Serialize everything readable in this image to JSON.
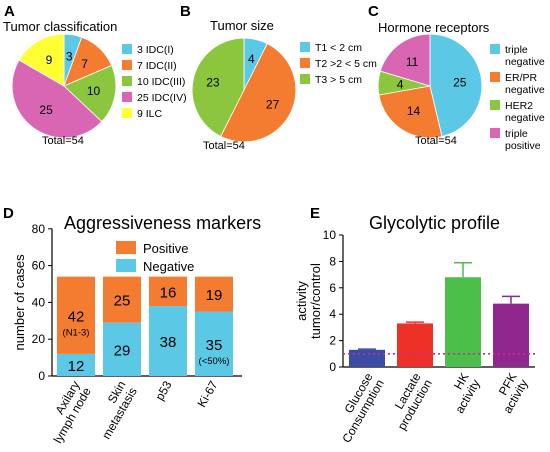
{
  "figure": {
    "colors": {
      "cyan": "#5bc9e6",
      "orange": "#f47c30",
      "green": "#8cc63f",
      "magenta": "#d966b3",
      "yellow": "#ffff33",
      "e_blue": "#3c4ba6",
      "e_red": "#ee3128",
      "e_green": "#4bbf4a",
      "e_purple": "#90278e",
      "dotted": "#b3359a"
    }
  },
  "chart_data": [
    {
      "panel": "A",
      "type": "pie",
      "title": "Tumor classification",
      "slices": [
        {
          "label": "3 IDC(I)",
          "value": 3,
          "color": "#5bc9e6"
        },
        {
          "label": "7 IDC(II)",
          "value": 7,
          "color": "#f47c30"
        },
        {
          "label": "10 IDC(III)",
          "value": 10,
          "color": "#8cc63f"
        },
        {
          "label": "25 IDC(IV)",
          "value": 25,
          "color": "#d966b3"
        },
        {
          "label": "9 ILC",
          "value": 9,
          "color": "#ffff33"
        }
      ],
      "total_label": "Total=54"
    },
    {
      "panel": "B",
      "type": "pie",
      "title": "Tumor size",
      "slices": [
        {
          "label": "T1 < 2 cm",
          "value": 4,
          "color": "#5bc9e6"
        },
        {
          "label": "T2 >2 < 5 cm",
          "value": 27,
          "color": "#f47c30"
        },
        {
          "label": "T3 > 5 cm",
          "value": 23,
          "color": "#8cc63f"
        }
      ],
      "total_label": "Total=54"
    },
    {
      "panel": "C",
      "type": "pie",
      "title": "Hormone receptors",
      "slices": [
        {
          "label": "triple negative",
          "value": 25,
          "color": "#5bc9e6"
        },
        {
          "label": "ER/PR negative",
          "value": 14,
          "color": "#f47c30"
        },
        {
          "label": "HER2 negative",
          "value": 4,
          "color": "#8cc63f"
        },
        {
          "label": "triple positive",
          "value": 11,
          "color": "#d966b3"
        }
      ],
      "total_label": "Total=54"
    },
    {
      "panel": "D",
      "type": "bar",
      "title": "Aggressiveness markers",
      "ylabel": "number of cases",
      "ylim": [
        0,
        80
      ],
      "yticks": [
        0,
        20,
        40,
        60,
        80
      ],
      "categories": [
        "Axilary lymph node",
        "Skin metastasis",
        "p53",
        "Ki-67"
      ],
      "series": [
        {
          "name": "Negative",
          "values": [
            12,
            29,
            38,
            35
          ],
          "color": "#5bc9e6"
        },
        {
          "name": "Positive",
          "values": [
            42,
            25,
            16,
            19
          ],
          "color": "#f47c30"
        }
      ],
      "annotations": [
        {
          "category": "Axilary lymph node",
          "series": "Positive",
          "text": "(N1-3)"
        },
        {
          "category": "Ki-67",
          "series": "Negative",
          "text": "(<50%)"
        }
      ]
    },
    {
      "panel": "E",
      "type": "bar",
      "title": "Glycolytic profile",
      "ylabel": "activity tumor/control",
      "ylim": [
        0,
        10
      ],
      "yticks": [
        0,
        2,
        4,
        6,
        8,
        10
      ],
      "categories": [
        "Glucose Consumption",
        "Lactate production",
        "HK activity",
        "PFK activity"
      ],
      "values": [
        1.3,
        3.3,
        6.8,
        4.8
      ],
      "errors": [
        0.05,
        0.1,
        1.1,
        0.55
      ],
      "colors": [
        "#3c4ba6",
        "#ee3128",
        "#4bbf4a",
        "#90278e"
      ],
      "reference_line": 1
    }
  ]
}
